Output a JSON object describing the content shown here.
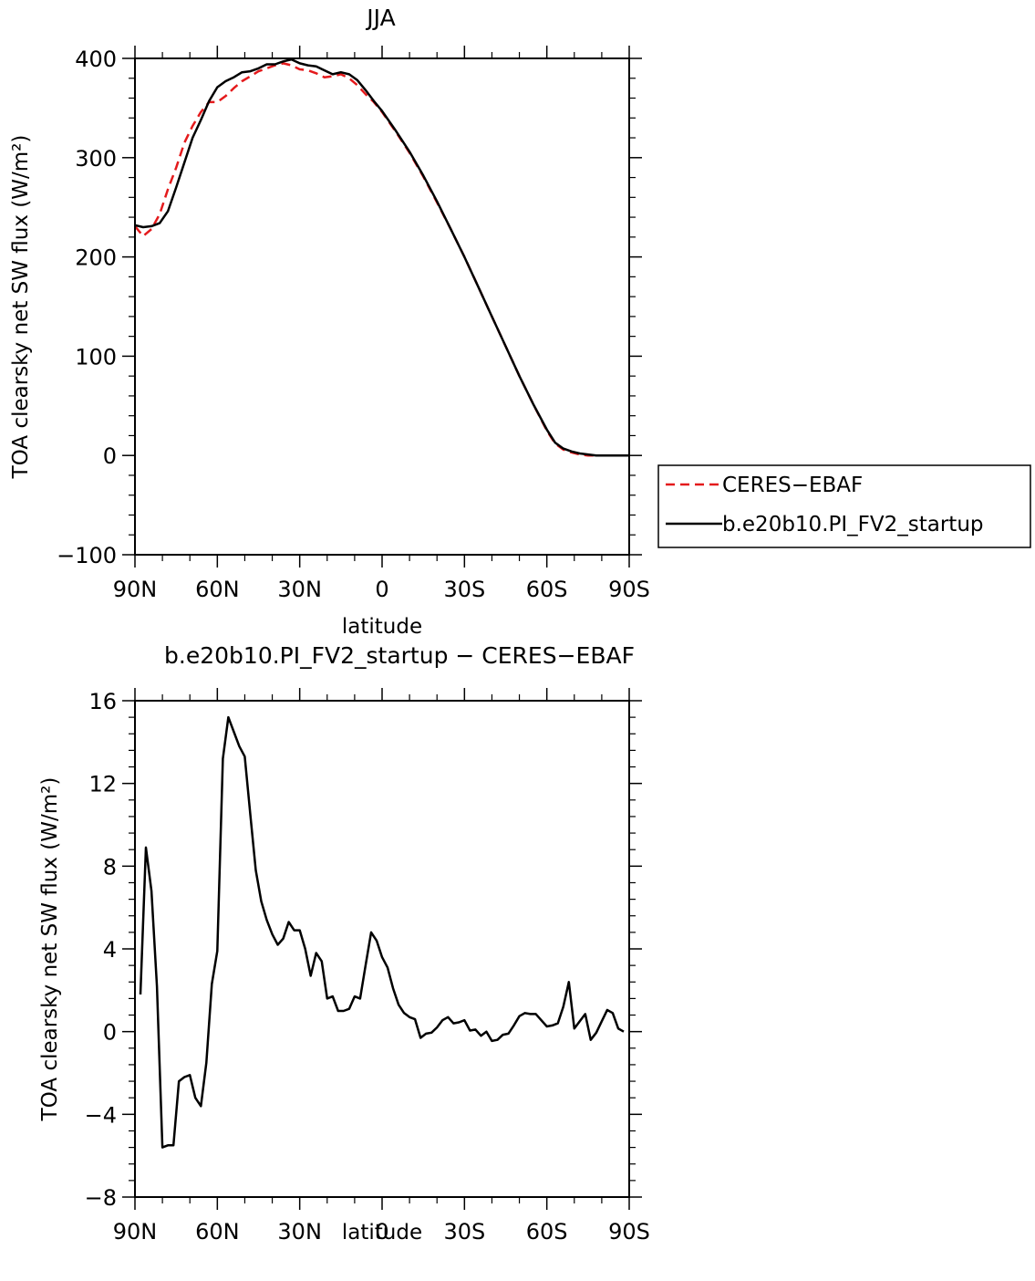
{
  "chart_data": [
    {
      "type": "line",
      "title": "JJA",
      "xlabel": "latitude",
      "ylabel": "TOA clearsky net SW flux (W/m²)",
      "xlim": [
        90,
        -90
      ],
      "ylim": [
        -100,
        400
      ],
      "yticks": [
        {
          "value": 400,
          "label": "400"
        },
        {
          "value": 300,
          "label": "300"
        },
        {
          "value": 200,
          "label": "200"
        },
        {
          "value": 100,
          "label": "100"
        },
        {
          "value": 0,
          "label": "0"
        },
        {
          "value": -100,
          "label": "−100"
        }
      ],
      "xticks": [
        {
          "value": 90,
          "label": "90N"
        },
        {
          "value": 60,
          "label": "60N"
        },
        {
          "value": 30,
          "label": "30N"
        },
        {
          "value": 0,
          "label": "0"
        },
        {
          "value": -30,
          "label": "30S"
        },
        {
          "value": -60,
          "label": "60S"
        },
        {
          "value": -90,
          "label": "90S"
        }
      ],
      "legend": {
        "placement": "right",
        "entries": [
          "CERES−EBAF",
          "b.e20b10.PI_FV2_startup"
        ]
      },
      "series": [
        {
          "name": "CERES−EBAF",
          "color": "#e41a1c",
          "dash": true,
          "x": [
            90,
            87,
            84,
            81,
            78,
            75,
            72,
            69,
            66,
            63,
            60,
            57,
            54,
            51,
            48,
            45,
            42,
            39,
            36,
            33,
            30,
            27,
            24,
            21,
            18,
            15,
            12,
            9,
            6,
            3,
            0,
            -5,
            -10,
            -15,
            -20,
            -25,
            -30,
            -35,
            -40,
            -45,
            -50,
            -55,
            -60,
            -63,
            -66,
            -69,
            -72,
            -75,
            -78,
            -81,
            -84,
            -87,
            -90
          ],
          "y": [
            231,
            221,
            228,
            243,
            268,
            290,
            315,
            332,
            346,
            356,
            356,
            362,
            370,
            377,
            382,
            387,
            390,
            393,
            395,
            393,
            389,
            388,
            385,
            381,
            382,
            384,
            380,
            373,
            364,
            356,
            346,
            326,
            305,
            281,
            255,
            228,
            200,
            170,
            140,
            110,
            80,
            52,
            25,
            12,
            6,
            3,
            1,
            0,
            0,
            0,
            0,
            0,
            0
          ]
        },
        {
          "name": "b.e20b10.PI_FV2_startup",
          "color": "#000000",
          "dash": false,
          "x": [
            90,
            87,
            84,
            81,
            78,
            75,
            72,
            69,
            66,
            63,
            60,
            57,
            54,
            51,
            48,
            45,
            42,
            39,
            36,
            33,
            30,
            27,
            24,
            21,
            18,
            15,
            12,
            9,
            6,
            3,
            0,
            -5,
            -10,
            -15,
            -20,
            -25,
            -30,
            -35,
            -40,
            -45,
            -50,
            -55,
            -60,
            -63,
            -66,
            -69,
            -72,
            -75,
            -78,
            -81,
            -84,
            -87,
            -90
          ],
          "y": [
            232,
            230,
            231,
            234,
            246,
            270,
            295,
            320,
            338,
            357,
            371,
            377,
            381,
            386,
            387,
            390,
            394,
            394,
            397,
            399,
            395,
            393,
            392,
            388,
            384,
            386,
            384,
            378,
            368,
            357,
            347,
            327,
            306,
            282,
            256,
            228,
            200,
            170,
            140,
            110,
            80,
            52,
            26,
            13,
            7,
            4,
            2,
            1,
            0,
            0,
            0,
            0,
            0
          ]
        }
      ]
    },
    {
      "type": "line",
      "title": "b.e20b10.PI_FV2_startup − CERES−EBAF",
      "xlabel": "latitude",
      "ylabel": "TOA clearsky net SW flux (W/m²)",
      "xlim": [
        90,
        -90
      ],
      "ylim": [
        -8,
        16
      ],
      "yticks": [
        {
          "value": 16,
          "label": "16"
        },
        {
          "value": 12,
          "label": "12"
        },
        {
          "value": 8,
          "label": "8"
        },
        {
          "value": 4,
          "label": "4"
        },
        {
          "value": 0,
          "label": "0"
        },
        {
          "value": -4,
          "label": "−4"
        },
        {
          "value": -8,
          "label": "−8"
        }
      ],
      "xticks": [
        {
          "value": 90,
          "label": "90N"
        },
        {
          "value": 60,
          "label": "60N"
        },
        {
          "value": 30,
          "label": "30N"
        },
        {
          "value": 0,
          "label": "0"
        },
        {
          "value": -30,
          "label": "30S"
        },
        {
          "value": -60,
          "label": "60S"
        },
        {
          "value": -90,
          "label": "90S"
        }
      ],
      "series": [
        {
          "color": "#000000",
          "dash": false,
          "x": [
            88,
            86,
            84,
            82,
            80,
            78,
            76,
            74,
            72,
            70,
            68,
            66,
            64,
            62,
            60,
            58,
            56,
            54,
            52,
            50,
            48,
            46,
            44,
            42,
            40,
            38,
            36,
            34,
            32,
            30,
            28,
            26,
            24,
            22,
            20,
            18,
            16,
            14,
            12,
            10,
            8,
            6,
            4,
            2,
            0,
            -2,
            -4,
            -6,
            -8,
            -10,
            -12,
            -14,
            -16,
            -18,
            -20,
            -22,
            -24,
            -26,
            -28,
            -30,
            -32,
            -34,
            -36,
            -38,
            -40,
            -42,
            -44,
            -46,
            -48,
            -50,
            -52,
            -54,
            -56,
            -58,
            -60,
            -62,
            -64,
            -66,
            -68,
            -70,
            -72,
            -74,
            -76,
            -78,
            -80,
            -82,
            -84,
            -86,
            -88
          ],
          "y": [
            1.8,
            8.9,
            6.8,
            2.2,
            -5.6,
            -5.5,
            -5.5,
            -2.4,
            -2.2,
            -2.1,
            -3.2,
            -3.6,
            -1.5,
            2.3,
            3.9,
            13.2,
            15.2,
            14.5,
            13.8,
            13.3,
            10.5,
            7.8,
            6.3,
            5.4,
            4.7,
            4.2,
            4.5,
            5.3,
            4.9,
            4.9,
            4.0,
            2.7,
            3.8,
            3.4,
            1.6,
            1.7,
            1.0,
            1.0,
            1.1,
            1.7,
            1.6,
            3.2,
            4.8,
            4.4,
            3.6,
            3.1,
            2.1,
            1.3,
            0.9,
            0.7,
            0.6,
            -0.3,
            -0.1,
            -0.05,
            0.2,
            0.55,
            0.7,
            0.4,
            0.45,
            0.55,
            0.05,
            0.1,
            -0.2,
            0.0,
            -0.45,
            -0.4,
            -0.15,
            -0.1,
            0.3,
            0.75,
            0.9,
            0.85,
            0.85,
            0.55,
            0.25,
            0.3,
            0.4,
            1.2,
            2.4,
            0.15,
            0.5,
            0.85,
            -0.4,
            -0.05,
            0.5,
            1.05,
            0.9,
            0.15,
            0.0
          ]
        }
      ]
    }
  ]
}
